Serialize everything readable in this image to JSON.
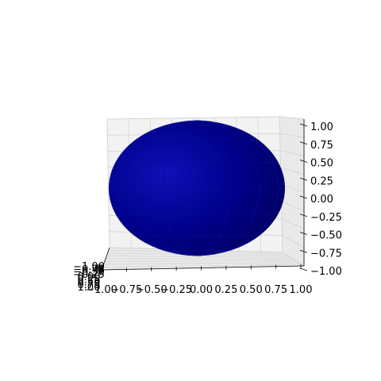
{
  "chart_data": {
    "type": "surface3d",
    "title": "",
    "xlabel": "",
    "ylabel": "",
    "zlabel": "",
    "surface": "sphere",
    "radius": 1.0,
    "surface_color": "#00008b",
    "grid": true,
    "xlim": [
      -1.0,
      1.0
    ],
    "ylim": [
      -1.0,
      1.0
    ],
    "zlim": [
      -1.0,
      1.0
    ],
    "x_ticks": [
      "−1.00",
      "−0.75",
      "−0.50",
      "−0.25",
      "0.00",
      "0.25",
      "0.50",
      "0.75",
      "1.00"
    ],
    "y_ticks": [
      "−1.00",
      "−0.75",
      "−0.50",
      "−0.25",
      "0.00",
      "0.25",
      "0.50",
      "0.75",
      "1.00"
    ],
    "z_ticks": [
      "−1.00",
      "−0.75",
      "−0.50",
      "−0.25",
      "0.00",
      "0.25",
      "0.50",
      "0.75",
      "1.00"
    ]
  }
}
